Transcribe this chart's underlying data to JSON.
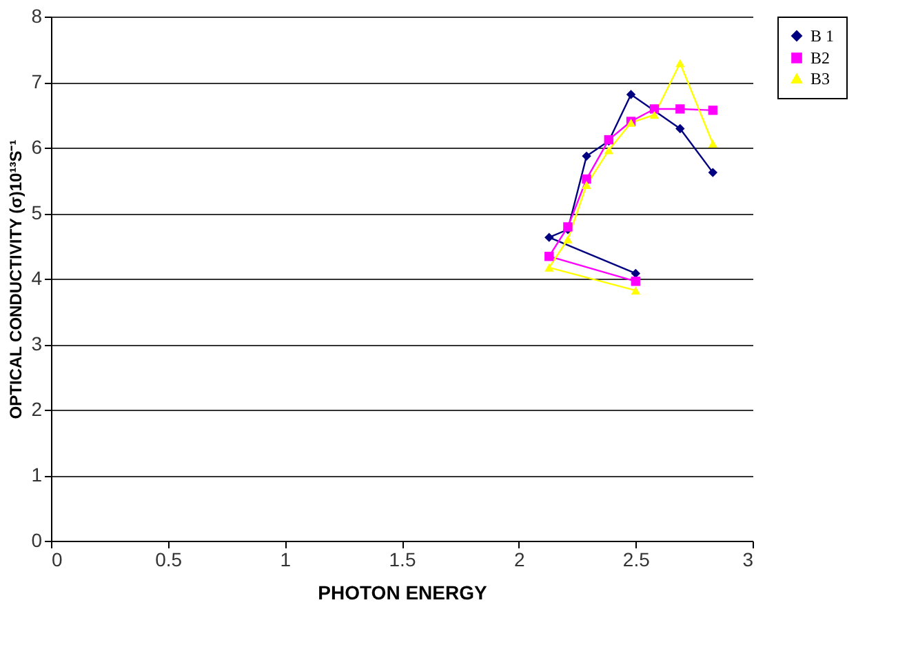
{
  "chart_data": {
    "type": "line",
    "xlabel": "PHOTON ENERGY",
    "ylabel": "OPTICAL CONDUCTIVITY (σ)10¹³S⁻¹",
    "xlim": [
      0,
      3
    ],
    "xticks": [
      0,
      0.5,
      1,
      1.5,
      2,
      2.5,
      3
    ],
    "ylim": [
      0,
      8
    ],
    "yticks": [
      0,
      1,
      2,
      3,
      4,
      5,
      6,
      7,
      8
    ],
    "grid": "y",
    "legend": "right",
    "series": [
      {
        "name": "B 1",
        "color": "#000080",
        "marker": "diamond",
        "x": [
          2.5,
          2.13,
          2.21,
          2.29,
          2.385,
          2.48,
          2.69,
          2.83
        ],
        "values": [
          4.08,
          4.63,
          4.75,
          5.87,
          6.1,
          6.81,
          6.29,
          5.62
        ]
      },
      {
        "name": "B2",
        "color": "#ff00ff",
        "marker": "square",
        "x": [
          2.5,
          2.13,
          2.21,
          2.29,
          2.385,
          2.48,
          2.58,
          2.69,
          2.83
        ],
        "values": [
          3.96,
          4.34,
          4.79,
          5.52,
          6.12,
          6.4,
          6.59,
          6.59,
          6.57
        ]
      },
      {
        "name": "B3",
        "color": "#ffff00",
        "marker": "triangle",
        "x": [
          2.5,
          2.13,
          2.21,
          2.29,
          2.385,
          2.48,
          2.58,
          2.69,
          2.83
        ],
        "values": [
          3.82,
          4.17,
          4.6,
          5.43,
          5.96,
          6.38,
          6.5,
          7.29,
          6.06
        ]
      }
    ]
  }
}
